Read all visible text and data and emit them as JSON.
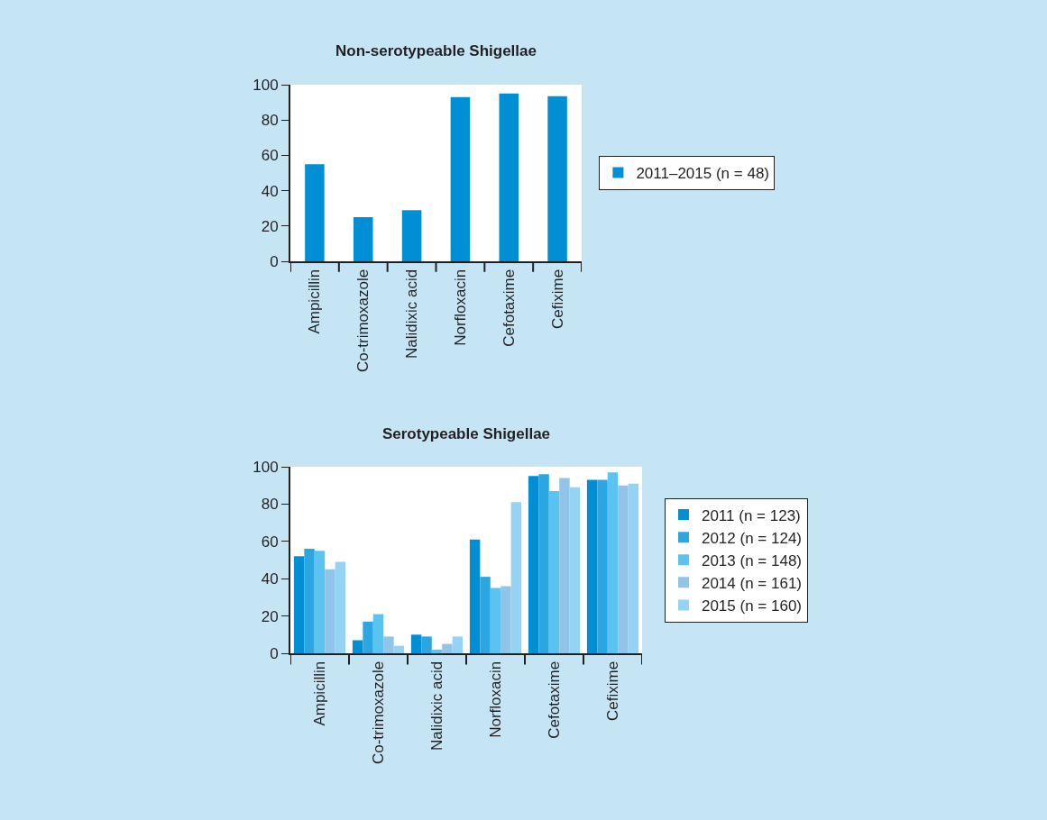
{
  "chart_data": [
    {
      "type": "bar",
      "title": "Non-serotypeable Shigellae",
      "categories": [
        "Ampicillin",
        "Co-trimoxazole",
        "Nalidixic acid",
        "Norfloxacin",
        "Cefotaxime",
        "Cefixime"
      ],
      "series": [
        {
          "name": "2011–2015 (n = 48)",
          "color": "#008fd5",
          "values": [
            55,
            25,
            29,
            93,
            95,
            93.5
          ]
        }
      ],
      "ylim": [
        0,
        100
      ],
      "yticks": [
        0,
        20,
        40,
        60,
        80,
        100
      ],
      "grid": false,
      "legend": "right"
    },
    {
      "type": "bar",
      "title": "Serotypeable Shigellae",
      "categories": [
        "Ampicillin",
        "Co-trimoxazole",
        "Nalidixic acid",
        "Norfloxacin",
        "Cefotaxime",
        "Cefixime"
      ],
      "series": [
        {
          "name": "2011 (n = 123)",
          "color": "#008fd5",
          "values": [
            52,
            7,
            10,
            61,
            95,
            93
          ]
        },
        {
          "name": "2012 (n = 124)",
          "color": "#2ba6e0",
          "values": [
            56,
            17,
            9,
            41,
            96,
            93
          ]
        },
        {
          "name": "2013 (n = 148)",
          "color": "#5bc3f0",
          "values": [
            55,
            21,
            2,
            35,
            87,
            97
          ]
        },
        {
          "name": "2014 (n = 161)",
          "color": "#90c4e8",
          "values": [
            45,
            9,
            5,
            36,
            94,
            90
          ]
        },
        {
          "name": "2015 (n = 160)",
          "color": "#94d3f3",
          "values": [
            49,
            4,
            9,
            81,
            89,
            91
          ]
        }
      ],
      "ylim": [
        0,
        100
      ],
      "yticks": [
        0,
        20,
        40,
        60,
        80,
        100
      ],
      "grid": false,
      "legend": "right"
    }
  ]
}
